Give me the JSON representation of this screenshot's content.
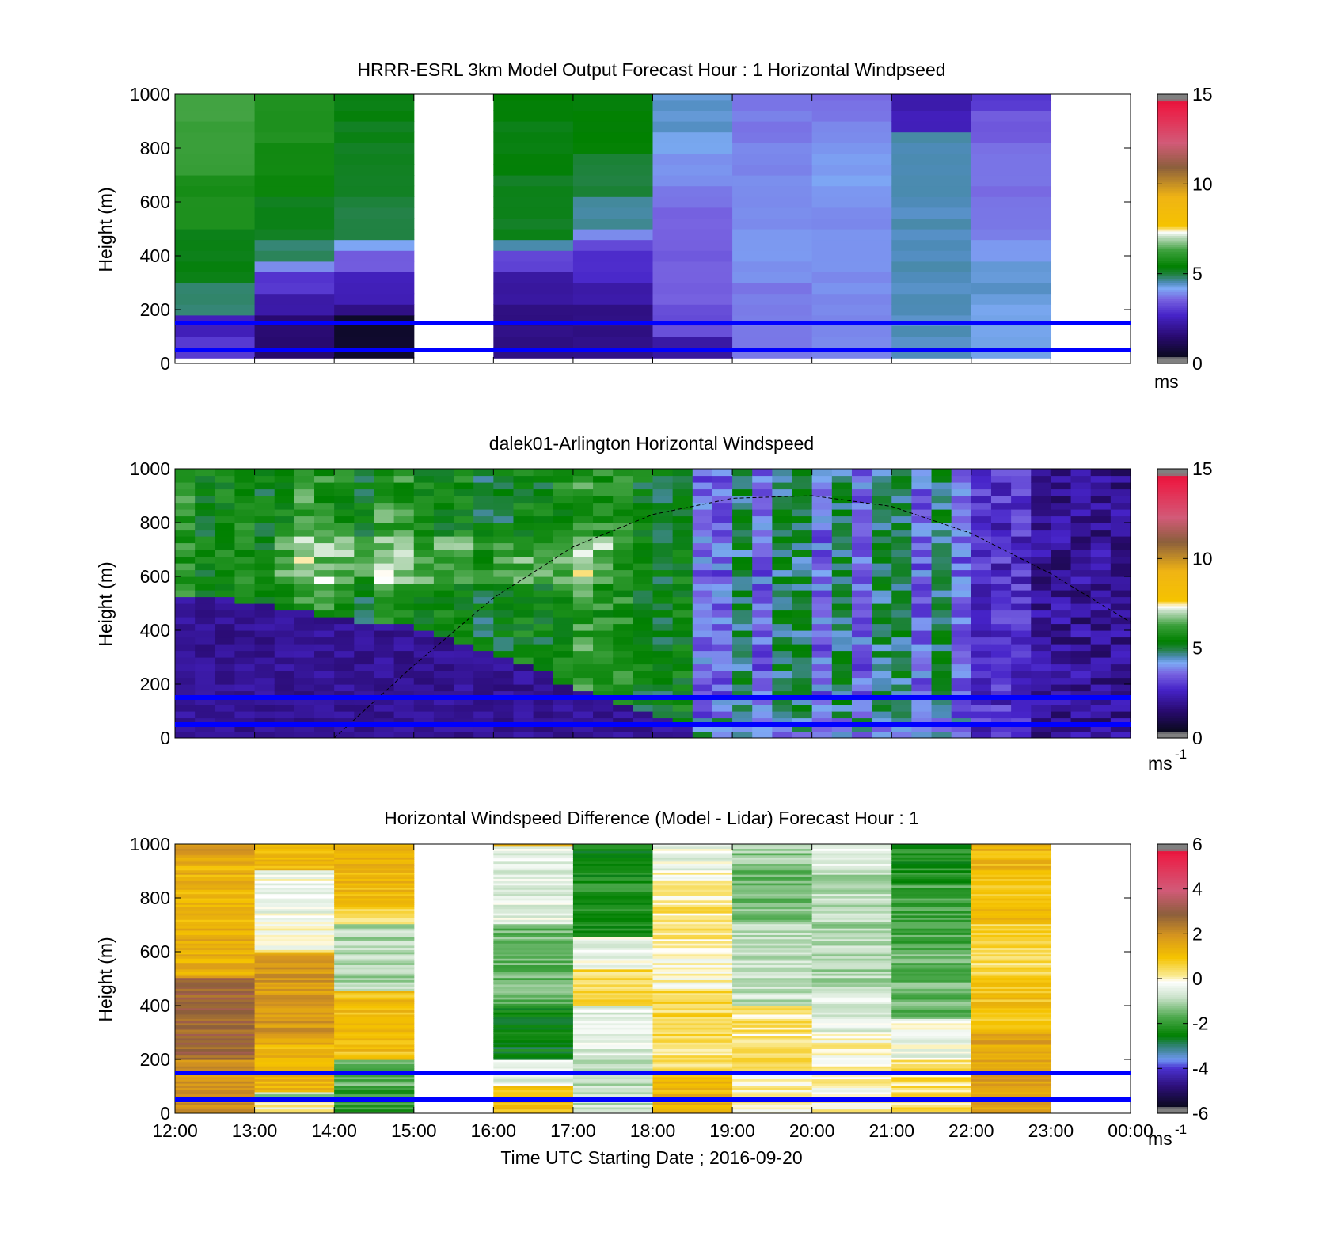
{
  "figure": {
    "xlabel": "Time UTC  Starting Date ; 2016-09-20",
    "x_ticks": [
      "12:00",
      "13:00",
      "14:00",
      "15:00",
      "16:00",
      "17:00",
      "18:00",
      "19:00",
      "20:00",
      "21:00",
      "22:00",
      "23:00",
      "00:00"
    ]
  },
  "chart_data": [
    {
      "type": "heatmap",
      "title": "HRRR-ESRL 3km Model Output   Forecast Hour : 1 Horizontal Windpseed",
      "ylabel": "Height (m)",
      "xlabel": "",
      "xlim": [
        12,
        24
      ],
      "ylim": [
        0,
        1000
      ],
      "y_ticks": [
        "0",
        "200",
        "400",
        "600",
        "800",
        "1000"
      ],
      "colorbar": {
        "min": 0,
        "max": 15,
        "ticks": [
          "0",
          "5",
          "10",
          "15"
        ],
        "unit": "ms",
        "unit_sup": ""
      },
      "blank_hours": [
        15,
        23
      ],
      "columns_note": "hourly model columns, value per height band in m/s",
      "columns": [
        {
          "hour": 12,
          "bands": [
            [
              0,
              3
            ],
            [
              70,
              2.5
            ],
            [
              160,
              4.8
            ],
            [
              300,
              5.3
            ],
            [
              500,
              5.8
            ],
            [
              700,
              6.2
            ],
            [
              900,
              6.4
            ]
          ]
        },
        {
          "hour": 13,
          "bands": [
            [
              0,
              1.5
            ],
            [
              150,
              2.2
            ],
            [
              250,
              3
            ],
            [
              320,
              4
            ],
            [
              380,
              4.8
            ],
            [
              430,
              5.2
            ],
            [
              600,
              5.6
            ],
            [
              800,
              5.9
            ]
          ]
        },
        {
          "hour": 14,
          "bands": [
            [
              0,
              0.6
            ],
            [
              150,
              1.8
            ],
            [
              220,
              2.5
            ],
            [
              320,
              3.5
            ],
            [
              400,
              4.2
            ],
            [
              450,
              5
            ],
            [
              600,
              5.2
            ],
            [
              900,
              5.3
            ]
          ]
        },
        {
          "hour": 16,
          "bands": [
            [
              0,
              1.8
            ],
            [
              200,
              2.2
            ],
            [
              320,
              3.2
            ],
            [
              400,
              4.6
            ],
            [
              450,
              5.2
            ],
            [
              700,
              5.3
            ],
            [
              900,
              5.4
            ]
          ]
        },
        {
          "hour": 17,
          "bands": [
            [
              0,
              1.8
            ],
            [
              200,
              2.3
            ],
            [
              300,
              2.8
            ],
            [
              400,
              3.2
            ],
            [
              450,
              4
            ],
            [
              500,
              4.6
            ],
            [
              600,
              5
            ],
            [
              750,
              5.4
            ]
          ]
        },
        {
          "hour": 18,
          "bands": [
            [
              0,
              2.2
            ],
            [
              70,
              3.3
            ],
            [
              200,
              3.5
            ],
            [
              400,
              3.6
            ],
            [
              550,
              3.7
            ],
            [
              650,
              4
            ],
            [
              750,
              4.2
            ],
            [
              850,
              4.4
            ]
          ]
        },
        {
          "hour": 19,
          "bands": [
            [
              0,
              3.8
            ],
            [
              300,
              4
            ],
            [
              700,
              3.9
            ],
            [
              800,
              3.7
            ],
            [
              900,
              3.8
            ]
          ]
        },
        {
          "hour": 20,
          "bands": [
            [
              0,
              3.9
            ],
            [
              200,
              3.95
            ],
            [
              600,
              4.1
            ],
            [
              700,
              4.05
            ],
            [
              800,
              3.95
            ],
            [
              900,
              3.7
            ]
          ]
        },
        {
          "hour": 21,
          "bands": [
            [
              0,
              4.5
            ],
            [
              600,
              4.6
            ],
            [
              850,
              2.5
            ],
            [
              930,
              2.3
            ]
          ]
        },
        {
          "hour": 22,
          "bands": [
            [
              0,
              4.3
            ],
            [
              200,
              4.4
            ],
            [
              350,
              4.1
            ],
            [
              450,
              3.8
            ],
            [
              600,
              3.7
            ],
            [
              800,
              3.5
            ],
            [
              930,
              3
            ]
          ]
        }
      ],
      "reference_lines_m": [
        50,
        150
      ]
    },
    {
      "type": "heatmap",
      "title": "dalek01-Arlington  Horizontal Windspeed",
      "ylabel": "Height (m)",
      "xlabel": "",
      "xlim": [
        12,
        24
      ],
      "ylim": [
        0,
        1000
      ],
      "y_ticks": [
        "0",
        "200",
        "400",
        "600",
        "800",
        "1000"
      ],
      "colorbar": {
        "min": 0,
        "max": 15,
        "ticks": [
          "0",
          "5",
          "10",
          "15"
        ],
        "unit": "ms",
        "unit_sup": "-1"
      },
      "blank_hours": [],
      "data_end_hour": 23.9,
      "boundary_layer_top_m": [
        [
          12,
          510
        ],
        [
          13,
          495
        ],
        [
          14,
          440
        ],
        [
          15,
          400
        ],
        [
          16,
          290
        ],
        [
          16.8,
          210
        ],
        [
          17.2,
          150
        ],
        [
          18,
          70
        ],
        [
          18.5,
          40
        ]
      ],
      "speed_note": "lidar profile: slow (~1.8 m/s) below boundary-layer top, green ~5.5 m/s above, mixed afternoon, slowing after 22:00",
      "sun_elevation_curve": [
        [
          14,
          0
        ],
        [
          15,
          270
        ],
        [
          16,
          520
        ],
        [
          17,
          710
        ],
        [
          18,
          830
        ],
        [
          19,
          890
        ],
        [
          20,
          900
        ],
        [
          21,
          860
        ],
        [
          22,
          760
        ],
        [
          23,
          610
        ],
        [
          24,
          430
        ]
      ],
      "reference_lines_m": [
        50,
        150
      ]
    },
    {
      "type": "heatmap",
      "title": "Horizontal Windspeed Difference (Model - Lidar) Forecast Hour : 1",
      "ylabel": "Height (m)",
      "xlabel": "Time UTC  Starting Date ; 2016-09-20",
      "xlim": [
        12,
        24
      ],
      "ylim": [
        0,
        1000
      ],
      "y_ticks": [
        "0",
        "200",
        "400",
        "600",
        "800",
        "1000"
      ],
      "colorbar": {
        "min": -6,
        "max": 6,
        "ticks": [
          "-6",
          "-4",
          "-2",
          "0",
          "2",
          "4",
          "6"
        ],
        "unit": "ms",
        "unit_sup": "-1"
      },
      "blank_hours": [
        15,
        23
      ],
      "columns": [
        {
          "hour": 12,
          "bands": [
            [
              0,
              2
            ],
            [
              200,
              2.8
            ],
            [
              500,
              1.4
            ],
            [
              700,
              1.3
            ],
            [
              950,
              1.8
            ]
          ]
        },
        {
          "hour": 13,
          "bands": [
            [
              0,
              0
            ],
            [
              50,
              -1
            ],
            [
              80,
              1.2
            ],
            [
              250,
              1.8
            ],
            [
              600,
              0
            ],
            [
              700,
              -0.3
            ],
            [
              900,
              1.2
            ]
          ]
        },
        {
          "hour": 14,
          "bands": [
            [
              0,
              -2
            ],
            [
              100,
              -1.5
            ],
            [
              200,
              1
            ],
            [
              450,
              -1
            ],
            [
              700,
              0.5
            ],
            [
              760,
              1.2
            ]
          ]
        },
        {
          "hour": 16,
          "bands": [
            [
              0,
              1
            ],
            [
              100,
              -0.5
            ],
            [
              200,
              -2.5
            ],
            [
              400,
              -1.5
            ],
            [
              700,
              -0.5
            ],
            [
              990,
              1
            ]
          ]
        },
        {
          "hour": 17,
          "bands": [
            [
              0,
              -0.8
            ],
            [
              200,
              -0.5
            ],
            [
              400,
              0.5
            ],
            [
              530,
              -0.3
            ],
            [
              650,
              -2.2
            ],
            [
              900,
              -2.5
            ]
          ]
        },
        {
          "hour": 18,
          "bands": [
            [
              0,
              1.2
            ],
            [
              150,
              0.3
            ],
            [
              250,
              0.5
            ],
            [
              450,
              0
            ],
            [
              600,
              0.3
            ],
            [
              800,
              0
            ],
            [
              900,
              -0.4
            ]
          ]
        },
        {
          "hour": 19,
          "bands": [
            [
              0,
              0
            ],
            [
              150,
              0.3
            ],
            [
              400,
              -0.8
            ],
            [
              700,
              -1.4
            ],
            [
              900,
              -1.2
            ]
          ]
        },
        {
          "hour": 20,
          "bands": [
            [
              0,
              0
            ],
            [
              300,
              -0.5
            ],
            [
              450,
              -1
            ],
            [
              700,
              -0.9
            ],
            [
              900,
              -0.4
            ]
          ]
        },
        {
          "hour": 21,
          "bands": [
            [
              0,
              0.4
            ],
            [
              200,
              -0.3
            ],
            [
              350,
              -1.5
            ],
            [
              600,
              -1.8
            ],
            [
              850,
              -2.2
            ]
          ]
        },
        {
          "hour": 22,
          "bands": [
            [
              0,
              1.6
            ],
            [
              300,
              1
            ],
            [
              500,
              0.5
            ],
            [
              700,
              1
            ],
            [
              900,
              1.2
            ]
          ]
        }
      ],
      "reference_lines_m": [
        50,
        150
      ]
    }
  ],
  "colors": {
    "reference_line": "#0000ff",
    "speed_scale": [
      "#808080",
      "#0a0a1e",
      "#2c0a6e",
      "#4a22c8",
      "#7a5ee0",
      "#7aa8f0",
      "#3f7fa8",
      "#1f8a3c",
      "#008000",
      "#4aaa4a",
      "#c8e0c8",
      "#ffffff",
      "#f0c000",
      "#b07040",
      "#e05070",
      "#ff2050",
      "#808080"
    ],
    "diff_scale": [
      "#808080",
      "#0a0a1e",
      "#3a1aa0",
      "#6a8af0",
      "#1f8a3c",
      "#008000",
      "#8ac88a",
      "#ffffff",
      "#f0c000",
      "#d89a20",
      "#8a5a3a",
      "#e05070",
      "#ff2050",
      "#808080"
    ]
  }
}
